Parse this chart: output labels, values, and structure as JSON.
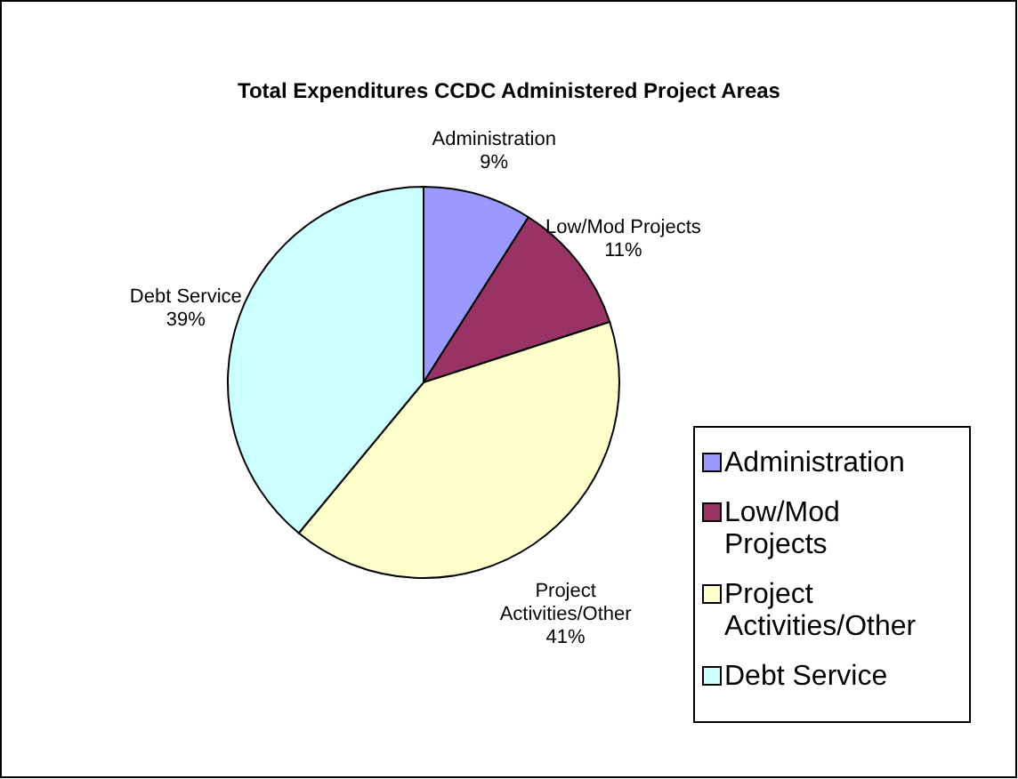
{
  "chart_data": {
    "type": "pie",
    "title": "Total Expenditures CCDC Administered Project Areas",
    "categories": [
      "Administration",
      "Low/Mod Projects",
      "Project Activities/Other",
      "Debt Service"
    ],
    "values": [
      9,
      11,
      41,
      39
    ],
    "value_labels": [
      "9%",
      "11%",
      "41%",
      "39%"
    ],
    "colors": [
      "#9999ff",
      "#993366",
      "#ffffcc",
      "#ccffff"
    ],
    "legend": "right"
  }
}
